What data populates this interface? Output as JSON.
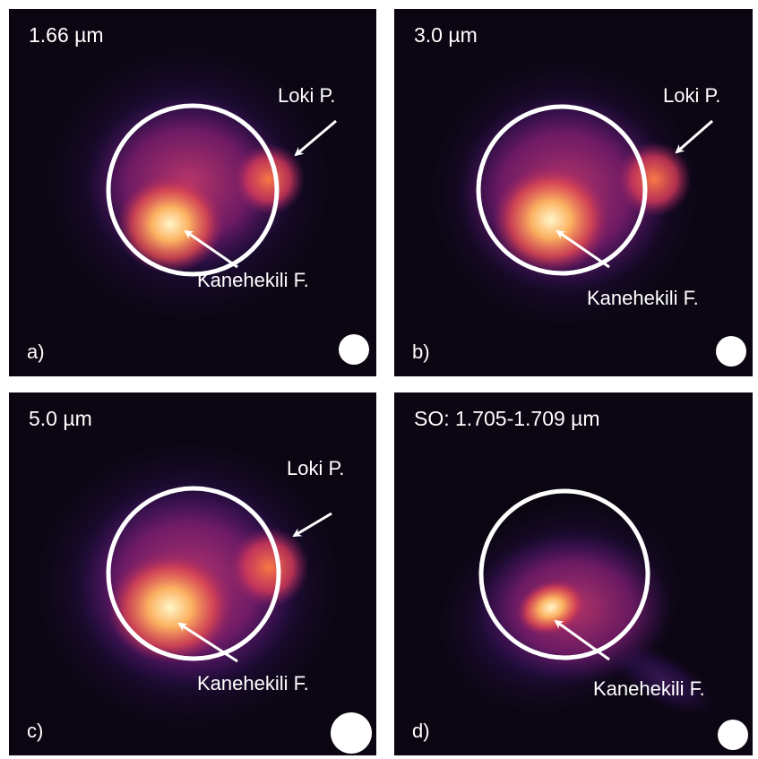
{
  "panels": [
    {
      "id": "a",
      "wavelength": "1.66 µm",
      "letter": "a)",
      "labels": [
        "Loki P.",
        "Kanehekili F."
      ]
    },
    {
      "id": "b",
      "wavelength": "3.0 µm",
      "letter": "b)",
      "labels": [
        "Loki P.",
        "Kanehekili F."
      ]
    },
    {
      "id": "c",
      "wavelength": "5.0 µm",
      "letter": "c)",
      "labels": [
        "Loki P.",
        "Kanehekili F."
      ]
    },
    {
      "id": "d",
      "wavelength": "SO: 1.705-1.709 µm",
      "letter": "d)",
      "labels": [
        "Kanehekili F."
      ]
    }
  ],
  "colors": {
    "background": "#0b0611",
    "halo": "#3b1570",
    "mid": "#b02a70",
    "hot": "#f06a3a",
    "core": "#fff6c8",
    "overlay": "#ffffff"
  }
}
